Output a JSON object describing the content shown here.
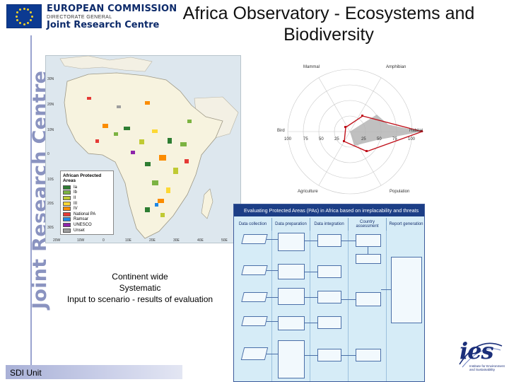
{
  "header": {
    "org_line1": "EUROPEAN COMMISSION",
    "org_line2": "DIRECTORATE GENERAL",
    "org_line3": "Joint Research Centre",
    "title": "Africa Observatory - Ecosystems and Biodiversity"
  },
  "sidebar": {
    "vertical_text": "Joint Research Centre"
  },
  "map": {
    "legend_title": "African Protected Areas",
    "legend": [
      {
        "label": "Ia",
        "color": "#2e7d32"
      },
      {
        "label": "Ib",
        "color": "#7cb342"
      },
      {
        "label": "II",
        "color": "#c0ca33"
      },
      {
        "label": "III",
        "color": "#fdd835"
      },
      {
        "label": "IV",
        "color": "#fb8c00"
      },
      {
        "label": "National PA",
        "color": "#e53935"
      },
      {
        "label": "Ramsar",
        "color": "#1e88e5"
      },
      {
        "label": "UNESCO",
        "color": "#8e24aa"
      },
      {
        "label": "Unset",
        "color": "#9e9e9e"
      }
    ],
    "lat_labels": [
      "30N",
      "20N",
      "10N",
      "0",
      "10S",
      "20S",
      "30S"
    ],
    "lon_labels": [
      "20W",
      "10W",
      "0",
      "10E",
      "20E",
      "30E",
      "40E",
      "50E"
    ]
  },
  "caption": {
    "line1": "Continent wide",
    "line2": "Systematic",
    "line3": "Input to scenario - results of evaluation"
  },
  "radar": {
    "axes": {
      "top_left": "Mammal",
      "top_right": "Amphibian",
      "left": "Bird",
      "right": "Habitat",
      "bottom_left": "Agriculture",
      "bottom_right": "Population"
    },
    "scale_left": [
      "100",
      "75",
      "50",
      "25"
    ],
    "scale_right": [
      "25",
      "50",
      "75",
      "100"
    ]
  },
  "flowchart": {
    "title": "Evaluating Protected Areas (PAs) in Africa based on irreplacability and threats",
    "columns": [
      "Data collection",
      "Data preparation",
      "Data integration",
      "Country assessment",
      "Report generation"
    ]
  },
  "footer": {
    "unit_label": "SDI Unit"
  },
  "ies": {
    "word": "ies",
    "sub": "Institute for Environment and Sustainability"
  },
  "colors": {
    "ec_blue": "#0c3a91",
    "ec_star": "#f5d327",
    "jrc_vertical": "#8a93c0",
    "flow_title_bg": "#1c3e86",
    "radar_series": "#c0111b"
  }
}
